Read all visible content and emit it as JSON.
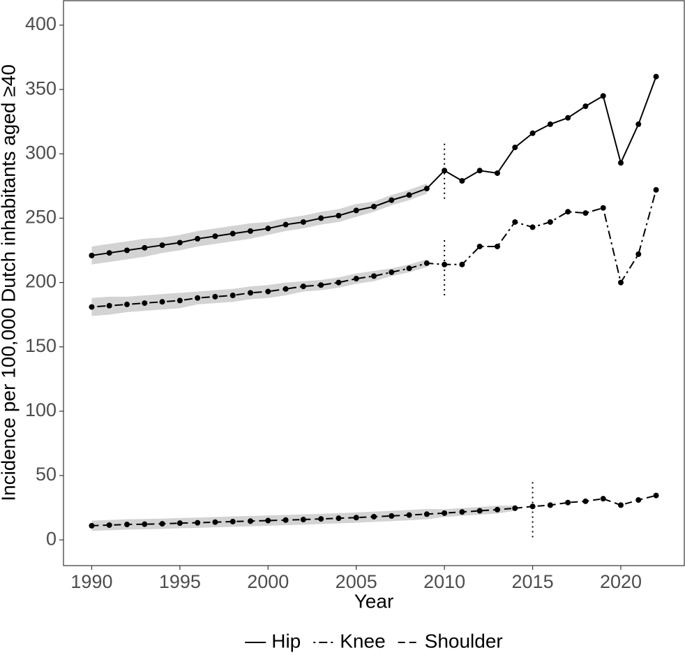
{
  "chart_data": {
    "type": "line",
    "x_label": "Year",
    "y_label": "Incidence per 100,000 Dutch inhabitants aged ≥40",
    "x": [
      1990,
      1991,
      1992,
      1993,
      1994,
      1995,
      1996,
      1997,
      1998,
      1999,
      2000,
      2001,
      2002,
      2003,
      2004,
      2005,
      2006,
      2007,
      2008,
      2009,
      2010,
      2011,
      2012,
      2013,
      2014,
      2015,
      2016,
      2017,
      2018,
      2019,
      2020,
      2021,
      2022
    ],
    "xlim": [
      1988.4,
      2023.6
    ],
    "xticks": [
      1990,
      1995,
      2000,
      2005,
      2010,
      2015,
      2020
    ],
    "ylim": [
      -20,
      419
    ],
    "yticks": [
      0,
      50,
      100,
      150,
      200,
      250,
      300,
      350,
      400
    ],
    "grid": false,
    "legend": "bottom",
    "band_color": "#d3d3d3",
    "series": [
      {
        "name": "Hip",
        "color": "#000000",
        "linestyle": "solid",
        "values": [
          221,
          223,
          225,
          227,
          229,
          231,
          234,
          236,
          238,
          240,
          242,
          245,
          247,
          250,
          252,
          256,
          259,
          264,
          268,
          273,
          287,
          279,
          287,
          285,
          305,
          316,
          323,
          328,
          337,
          345,
          293,
          323,
          360
        ],
        "lower": [
          214,
          216,
          218,
          220,
          223,
          225,
          228,
          230,
          232,
          234,
          237,
          240,
          242,
          245,
          247,
          251,
          255,
          260,
          264,
          269,
          null,
          null,
          null,
          null,
          null,
          null,
          null,
          null,
          null,
          null,
          null,
          null,
          null
        ],
        "upper": [
          228,
          230,
          232,
          234,
          235,
          237,
          240,
          242,
          244,
          246,
          247,
          250,
          252,
          255,
          257,
          261,
          263,
          268,
          272,
          277,
          null,
          null,
          null,
          null,
          null,
          null,
          null,
          null,
          null,
          null,
          null,
          null,
          null
        ],
        "break": {
          "x": 2010,
          "ymin": 265,
          "ymax": 309
        }
      },
      {
        "name": "Knee",
        "color": "#000000",
        "linestyle": "dashdot",
        "values": [
          181,
          182,
          183,
          184,
          185,
          186,
          188,
          189,
          190,
          192,
          193,
          195,
          197,
          198,
          200,
          203,
          205,
          208,
          211,
          215,
          214,
          214,
          228,
          228,
          247,
          243,
          247,
          255,
          254,
          258,
          200,
          222,
          272
        ],
        "lower": [
          174,
          175,
          177,
          178,
          179,
          180,
          183,
          184,
          185,
          187,
          188,
          190,
          193,
          194,
          196,
          199,
          201,
          205,
          208,
          212,
          null,
          null,
          null,
          null,
          null,
          null,
          null,
          null,
          null,
          null,
          null,
          null,
          null
        ],
        "upper": [
          188,
          189,
          189,
          190,
          191,
          192,
          193,
          194,
          195,
          197,
          198,
          200,
          201,
          202,
          204,
          207,
          209,
          211,
          214,
          218,
          null,
          null,
          null,
          null,
          null,
          null,
          null,
          null,
          null,
          null,
          null,
          null,
          null
        ],
        "break": {
          "x": 2010,
          "ymin": 190,
          "ymax": 233
        }
      },
      {
        "name": "Shoulder",
        "color": "#000000",
        "linestyle": "dashed",
        "values": [
          11,
          11.5,
          12,
          12.2,
          12.5,
          13,
          13.3,
          13.8,
          14.2,
          14.6,
          15,
          15.4,
          15.8,
          16.3,
          16.8,
          17.3,
          18,
          18.6,
          19.3,
          20,
          20.8,
          21.7,
          22.6,
          23.5,
          24.6,
          26,
          27,
          29,
          30,
          32,
          27,
          31,
          34.5
        ],
        "lower": [
          7,
          7.5,
          8,
          8.2,
          8.5,
          9,
          9.3,
          9.8,
          10.2,
          10.6,
          11,
          11.4,
          11.8,
          12.3,
          12.8,
          13.3,
          14,
          14.6,
          15.3,
          16,
          17.8,
          18.7,
          19.6,
          20.5,
          22.6,
          null,
          null,
          null,
          null,
          null,
          null,
          null,
          null
        ],
        "upper": [
          15,
          15.5,
          16,
          16.2,
          16.5,
          17,
          17.3,
          17.8,
          18.2,
          18.6,
          19,
          19.4,
          19.8,
          20.3,
          20.8,
          21.3,
          22,
          22.6,
          23.3,
          24,
          23.8,
          24.7,
          25.6,
          26.5,
          26.6,
          null,
          null,
          null,
          null,
          null,
          null,
          null,
          null
        ],
        "break": {
          "x": 2015,
          "ymin": 2,
          "ymax": 46
        }
      }
    ]
  }
}
